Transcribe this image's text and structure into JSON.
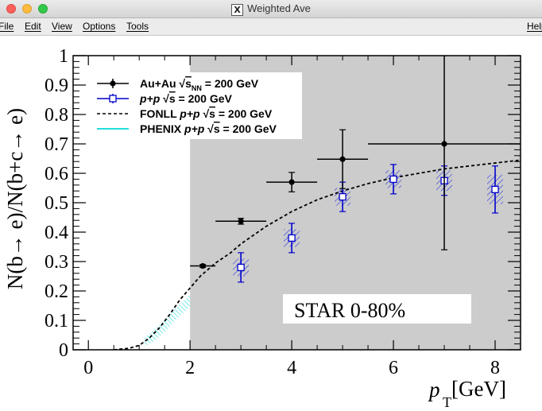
{
  "window": {
    "title": "Weighted Ave",
    "icon": "x11-icon"
  },
  "menu": {
    "file": "File",
    "edit": "Edit",
    "view": "View",
    "options": "Options",
    "tools": "Tools",
    "help": "Help"
  },
  "chart_data": {
    "type": "scatter",
    "xlabel_main": "p",
    "xlabel_sub": "T",
    "xlabel_unit": " [GeV]",
    "ylabel": "N(b→ e)/N(b+c→ e)",
    "xlim": [
      -0.3,
      8.5
    ],
    "ylim": [
      0,
      1
    ],
    "x_ticks": [
      "0",
      "2",
      "4",
      "6",
      "8"
    ],
    "y_ticks": [
      "0",
      "0.1",
      "0.2",
      "0.3",
      "0.4",
      "0.5",
      "0.6",
      "0.7",
      "0.8",
      "0.9",
      "1"
    ],
    "shaded_region": {
      "x_from": 2,
      "x_to": 8.5,
      "color": "#cccccc"
    },
    "annotation": "STAR 0-80%",
    "legend": {
      "placement": "top-left",
      "entries": [
        {
          "label": "Au+Au",
          "sqrt": "s",
          "sub": "NN",
          "energy": "= 200 GeV",
          "style": "black-dot"
        },
        {
          "label": "p+p",
          "sqrt": "s",
          "sub": "",
          "energy": "= 200 GeV",
          "style": "blue-square"
        },
        {
          "label": "FONLL  p+p",
          "sqrt": "s",
          "sub": "",
          "energy": "= 200 GeV",
          "style": "dashed"
        },
        {
          "label": "PHENIX  p+p",
          "sqrt": "s",
          "sub": "",
          "energy": "= 200 GeV",
          "style": "cyan"
        }
      ]
    },
    "series": [
      {
        "name": "Au+Au",
        "color": "#000000",
        "marker": "circle",
        "points": [
          {
            "x": 2.25,
            "y": 0.285,
            "xerr": 0.25,
            "yerr": 0.005
          },
          {
            "x": 3.0,
            "y": 0.437,
            "xerr": 0.5,
            "yerr": 0.01
          },
          {
            "x": 4.0,
            "y": 0.57,
            "xerr": 0.5,
            "yerr": 0.033
          },
          {
            "x": 5.0,
            "y": 0.648,
            "xerr": 0.5,
            "yerr": 0.1
          },
          {
            "x": 7.0,
            "y": 0.7,
            "xerr": 1.5,
            "yerr_lo": 0.36,
            "yerr_hi": 0.3
          }
        ]
      },
      {
        "name": "p+p",
        "color": "#0000cc",
        "marker": "open-square",
        "points": [
          {
            "x": 3.0,
            "y": 0.28,
            "yerr": 0.05,
            "syst": 0.03
          },
          {
            "x": 4.0,
            "y": 0.38,
            "yerr": 0.05,
            "syst": 0.03
          },
          {
            "x": 5.0,
            "y": 0.52,
            "yerr": 0.05,
            "syst": 0.03
          },
          {
            "x": 6.0,
            "y": 0.58,
            "yerr": 0.05,
            "syst": 0.03
          },
          {
            "x": 7.0,
            "y": 0.575,
            "yerr": 0.05,
            "syst": 0.035
          },
          {
            "x": 8.0,
            "y": 0.545,
            "yerr": 0.08,
            "syst": 0.05
          }
        ]
      },
      {
        "name": "FONLL",
        "color": "#000000",
        "style": "dashed",
        "x": [
          0.5,
          0.8,
          1.0,
          1.2,
          1.4,
          1.6,
          1.8,
          2.0,
          2.2,
          2.5,
          2.8,
          3.0,
          3.5,
          4.0,
          4.5,
          5.0,
          5.5,
          6.0,
          6.5,
          7.0,
          7.5,
          8.0,
          8.5
        ],
        "y": [
          0.0,
          0.005,
          0.015,
          0.04,
          0.075,
          0.12,
          0.17,
          0.21,
          0.25,
          0.295,
          0.33,
          0.36,
          0.42,
          0.47,
          0.51,
          0.54,
          0.565,
          0.585,
          0.6,
          0.615,
          0.625,
          0.635,
          0.645
        ]
      },
      {
        "name": "PHENIX",
        "color": "#00cccc",
        "style": "hatched-band",
        "x": [
          1.1,
          1.3,
          1.5,
          1.7,
          1.9,
          2.0
        ],
        "ylow": [
          0.01,
          0.03,
          0.06,
          0.1,
          0.13,
          0.15
        ],
        "yhigh": [
          0.04,
          0.07,
          0.1,
          0.14,
          0.17,
          0.19
        ]
      }
    ]
  }
}
